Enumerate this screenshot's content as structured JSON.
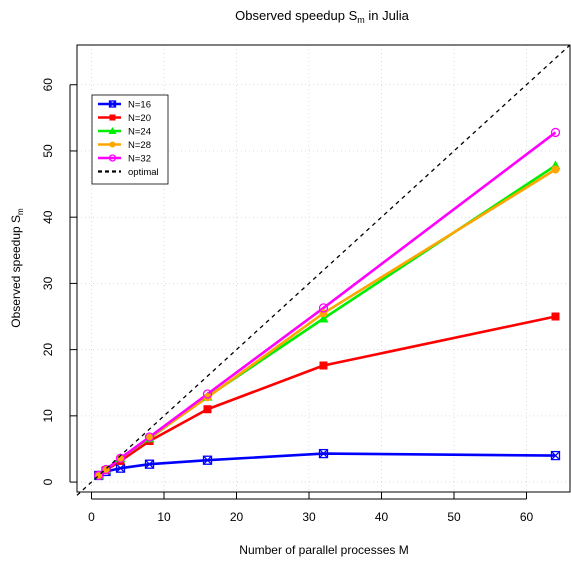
{
  "chart_data": {
    "type": "line",
    "title_main": "Observed speedup S",
    "title_sub": "m",
    "title_suffix": " in Julia",
    "xlabel": "Number of parallel processes M",
    "ylabel_main": "Observed speedup S",
    "ylabel_sub": "m",
    "xlim": [
      -2,
      66
    ],
    "ylim": [
      -1.5,
      66
    ],
    "xticks": [
      0,
      10,
      20,
      30,
      40,
      50,
      60
    ],
    "yticks": [
      0,
      10,
      20,
      30,
      40,
      50,
      60
    ],
    "grid": true,
    "legend_position": "top-left",
    "x": [
      1,
      2,
      4,
      8,
      16,
      32,
      64
    ],
    "series": [
      {
        "name": "N=16",
        "color": "#0000ff",
        "marker": "square-x",
        "values": [
          1.0,
          1.6,
          2.1,
          2.7,
          3.3,
          4.3,
          4.0
        ]
      },
      {
        "name": "N=20",
        "color": "#ff0000",
        "marker": "square",
        "values": [
          1.0,
          1.8,
          3.2,
          6.2,
          11.0,
          17.6,
          25.0
        ]
      },
      {
        "name": "N=24",
        "color": "#00ee00",
        "marker": "triangle",
        "values": [
          1.0,
          1.9,
          3.6,
          6.6,
          12.9,
          24.7,
          47.8
        ]
      },
      {
        "name": "N=28",
        "color": "#ffa500",
        "marker": "circle",
        "values": [
          1.0,
          1.9,
          3.6,
          6.7,
          12.8,
          25.5,
          47.2
        ]
      },
      {
        "name": "N=32",
        "color": "#ff00ff",
        "marker": "circle-open",
        "values": [
          1.0,
          1.9,
          3.6,
          6.8,
          13.3,
          26.3,
          52.8
        ]
      }
    ],
    "optimal": {
      "name": "optimal",
      "color": "#000000",
      "dashed": true
    }
  }
}
